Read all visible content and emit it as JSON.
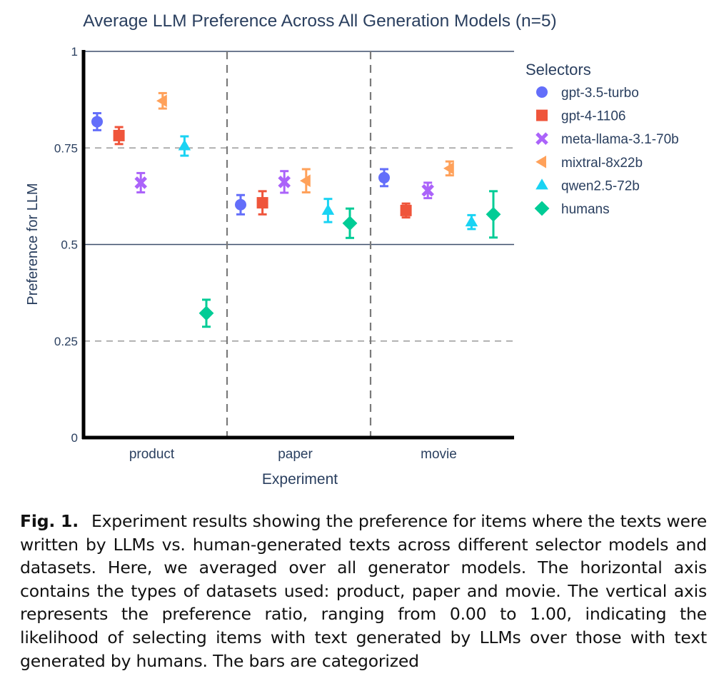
{
  "chart_data": {
    "type": "scatter",
    "title": "Average LLM Preference Across All Generation Models (n=5)",
    "xlabel": "Experiment",
    "ylabel": "Preference for LLM",
    "categories": [
      "product",
      "paper",
      "movie"
    ],
    "ylim": [
      0,
      1
    ],
    "yticks": [
      "0",
      "0.25",
      "0.5",
      "0.75",
      "1"
    ],
    "grid": true,
    "error_bars": true,
    "legend_title": "Selectors",
    "legend_position": "right",
    "series": [
      {
        "name": "gpt-3.5-turbo",
        "marker": "circle",
        "color": "#636efa",
        "values": [
          0.818,
          0.603,
          0.673
        ],
        "err": [
          0.022,
          0.025,
          0.022
        ]
      },
      {
        "name": "gpt-4-1106",
        "marker": "square",
        "color": "#ef553b",
        "values": [
          0.782,
          0.608,
          0.588
        ],
        "err": [
          0.022,
          0.03,
          0.018
        ]
      },
      {
        "name": "meta-llama-3.1-70b",
        "marker": "x",
        "color": "#ab63fa",
        "values": [
          0.66,
          0.662,
          0.64
        ],
        "err": [
          0.025,
          0.028,
          0.02
        ]
      },
      {
        "name": "mixtral-8x22b",
        "marker": "triangle-left",
        "color": "#ffa15a",
        "values": [
          0.872,
          0.665,
          0.697
        ],
        "err": [
          0.02,
          0.03,
          0.018
        ]
      },
      {
        "name": "qwen2.5-72b",
        "marker": "triangle-up",
        "color": "#19d3f3",
        "values": [
          0.755,
          0.588,
          0.558
        ],
        "err": [
          0.025,
          0.03,
          0.018
        ]
      },
      {
        "name": "humans",
        "marker": "diamond",
        "color": "#00cc96",
        "values": [
          0.322,
          0.555,
          0.578
        ],
        "err": [
          0.035,
          0.038,
          0.06
        ]
      }
    ]
  },
  "caption": {
    "label": "Fig. 1.",
    "text": "Experiment results showing the preference for items where the texts were written by LLMs vs. human-generated texts across different selector models and datasets. Here, we averaged over all generator models. The horizontal axis contains the types of datasets used: product, paper and movie. The vertical axis represents the preference ratio, ranging from 0.00 to 1.00, indicating the likelihood of selecting items with text generated by LLMs over those with text generated by humans. The bars are categorized"
  }
}
